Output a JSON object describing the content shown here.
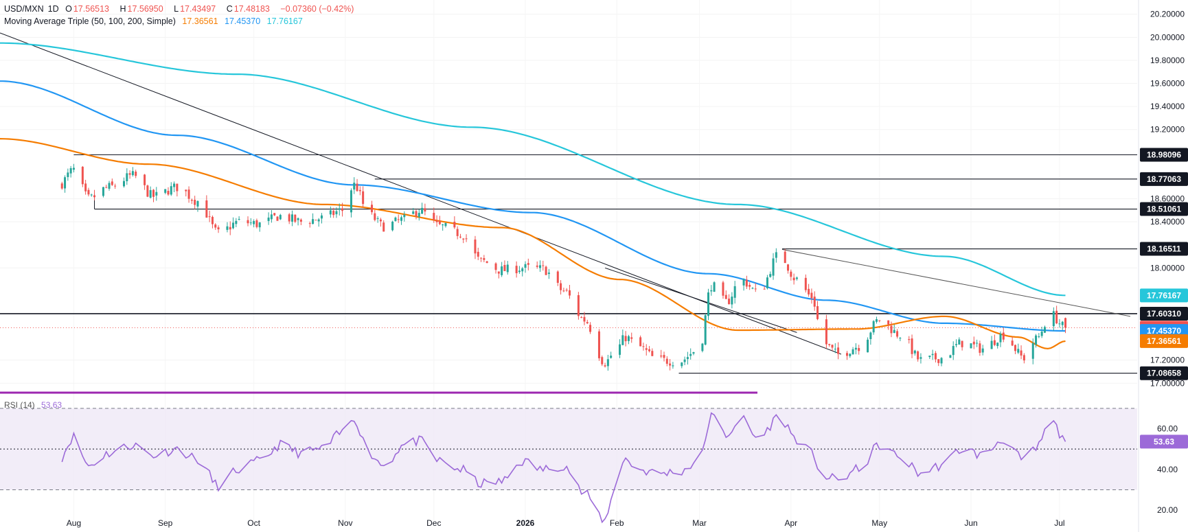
{
  "header": {
    "symbol": "USD/MXN",
    "timeframe": "1D",
    "open_label": "O",
    "open": "17.56513",
    "high_label": "H",
    "high": "17.56950",
    "low_label": "L",
    "low": "17.43497",
    "close_label": "C",
    "close": "17.48183",
    "change": "−0.07360 (−0.42%)",
    "ma_title": "Moving Average Triple (50, 100, 200, Simple)",
    "ma50": "17.36561",
    "ma100": "17.45370",
    "ma200": "17.76167",
    "rsi_title": "RSI (14)",
    "rsi_value": "53.63"
  },
  "colors": {
    "up": "#26a69a",
    "down": "#ef5350",
    "ma50": "#f57c00",
    "ma100": "#2196f3",
    "ma200": "#26c6da",
    "rsi": "#9c6ad8",
    "level_tag": "#131722",
    "price_tag": "#ef5350"
  },
  "chart_data": [
    {
      "type": "candlestick",
      "x_labels": [
        "Aug",
        "Sep",
        "Oct",
        "Nov",
        "Dec",
        "2026",
        "Feb",
        "Mar",
        "Apr",
        "May",
        "Jun",
        "Jul"
      ],
      "y_ticks": [
        "20.20000",
        "20.00000",
        "19.80000",
        "19.60000",
        "19.40000",
        "19.20000",
        "18.60000",
        "18.40000",
        "18.00000",
        "17.20000",
        "17.00000"
      ],
      "ylim": [
        16.96,
        20.24
      ],
      "horizontal_levels": [
        18.98096,
        18.77063,
        18.51061,
        18.16511,
        17.6031,
        17.08658
      ],
      "level_labels": [
        "18.98096",
        "18.77063",
        "18.51061",
        "18.16511",
        "17.60310",
        "17.08658"
      ],
      "value_tags": [
        {
          "label": "17.76167",
          "value": 17.76167,
          "series": "SMA 200"
        },
        {
          "label": "17.48183",
          "value": 17.48183,
          "series": "close"
        },
        {
          "label": "17.45370",
          "value": 17.4537,
          "series": "SMA 100"
        },
        {
          "label": "17.36561",
          "value": 17.36561,
          "series": "SMA 50"
        }
      ],
      "anchors": [
        {
          "x": "Jul 27",
          "close": 18.72
        },
        {
          "x": "Aug 1",
          "close": 18.85
        },
        {
          "x": "Aug 6",
          "close": 18.6
        },
        {
          "x": "Aug 13",
          "close": 18.7
        },
        {
          "x": "Aug 21",
          "close": 18.8
        },
        {
          "x": "Aug 28",
          "close": 18.62
        },
        {
          "x": "Sep 5",
          "close": 18.7
        },
        {
          "x": "Sep 12",
          "close": 18.58
        },
        {
          "x": "Sep 19",
          "close": 18.3
        },
        {
          "x": "Sep 26",
          "close": 18.4
        },
        {
          "x": "Oct 3",
          "close": 18.38
        },
        {
          "x": "Oct 10",
          "close": 18.45
        },
        {
          "x": "Oct 17",
          "close": 18.4
        },
        {
          "x": "Oct 24",
          "close": 18.43
        },
        {
          "x": "Oct 31",
          "close": 18.5
        },
        {
          "x": "Nov 4",
          "close": 18.72
        },
        {
          "x": "Nov 9",
          "close": 18.46
        },
        {
          "x": "Nov 14",
          "close": 18.36
        },
        {
          "x": "Nov 21",
          "close": 18.42
        },
        {
          "x": "Nov 26",
          "close": 18.5
        },
        {
          "x": "Dec 3",
          "close": 18.36
        },
        {
          "x": "Dec 10",
          "close": 18.3
        },
        {
          "x": "Dec 17",
          "close": 18.06
        },
        {
          "x": "Dec 24",
          "close": 17.98
        },
        {
          "x": "Dec 31",
          "close": 18.0
        },
        {
          "x": "Jan 7",
          "close": 17.99
        },
        {
          "x": "Jan 14",
          "close": 17.8
        },
        {
          "x": "Jan 21",
          "close": 17.55
        },
        {
          "x": "Jan 28",
          "close": 17.18
        },
        {
          "x": "Feb 1",
          "close": 17.3
        },
        {
          "x": "Feb 4",
          "close": 17.4
        },
        {
          "x": "Feb 8",
          "close": 17.32
        },
        {
          "x": "Feb 15",
          "close": 17.2
        },
        {
          "x": "Feb 22",
          "close": 17.19
        },
        {
          "x": "Mar 1",
          "close": 17.3
        },
        {
          "x": "Mar 5",
          "close": 17.85
        },
        {
          "x": "Mar 10",
          "close": 17.7
        },
        {
          "x": "Mar 15",
          "close": 17.9
        },
        {
          "x": "Mar 21",
          "close": 17.78
        },
        {
          "x": "Mar 28",
          "close": 18.12
        },
        {
          "x": "Apr 3",
          "close": 17.9
        },
        {
          "x": "Apr 8",
          "close": 17.75
        },
        {
          "x": "Apr 12",
          "close": 17.35
        },
        {
          "x": "Apr 17",
          "close": 17.25
        },
        {
          "x": "Apr 24",
          "close": 17.32
        },
        {
          "x": "May 1",
          "close": 17.55
        },
        {
          "x": "May 8",
          "close": 17.42
        },
        {
          "x": "May 15",
          "close": 17.2
        },
        {
          "x": "May 22",
          "close": 17.22
        },
        {
          "x": "May 29",
          "close": 17.35
        },
        {
          "x": "Jun 5",
          "close": 17.3
        },
        {
          "x": "Jun 12",
          "close": 17.42
        },
        {
          "x": "Jun 19",
          "close": 17.22
        },
        {
          "x": "Jun 23",
          "close": 17.38
        },
        {
          "x": "Jun 28",
          "close": 17.6
        },
        {
          "x": "Jul 3",
          "close": 17.48
        }
      ]
    },
    {
      "type": "line",
      "title": "RSI (14)",
      "y_ticks": [
        "60.00",
        "40.00",
        "20.00"
      ],
      "ylim": [
        15,
        75
      ],
      "levels": [
        70,
        50,
        30
      ],
      "anchors": [
        {
          "x": "Jul 27",
          "value": 45
        },
        {
          "x": "Aug 1",
          "value": 56
        },
        {
          "x": "Aug 6",
          "value": 42
        },
        {
          "x": "Aug 13",
          "value": 48
        },
        {
          "x": "Aug 21",
          "value": 52
        },
        {
          "x": "Aug 28",
          "value": 47
        },
        {
          "x": "Sep 5",
          "value": 50
        },
        {
          "x": "Sep 12",
          "value": 45
        },
        {
          "x": "Sep 19",
          "value": 32
        },
        {
          "x": "Sep 26",
          "value": 40
        },
        {
          "x": "Oct 3",
          "value": 44
        },
        {
          "x": "Oct 10",
          "value": 52
        },
        {
          "x": "Oct 17",
          "value": 48
        },
        {
          "x": "Oct 24",
          "value": 50
        },
        {
          "x": "Oct 31",
          "value": 58
        },
        {
          "x": "Nov 4",
          "value": 65
        },
        {
          "x": "Nov 9",
          "value": 48
        },
        {
          "x": "Nov 14",
          "value": 42
        },
        {
          "x": "Nov 21",
          "value": 52
        },
        {
          "x": "Nov 26",
          "value": 54
        },
        {
          "x": "Dec 3",
          "value": 44
        },
        {
          "x": "Dec 10",
          "value": 40
        },
        {
          "x": "Dec 17",
          "value": 33
        },
        {
          "x": "Dec 24",
          "value": 34
        },
        {
          "x": "Dec 31",
          "value": 44
        },
        {
          "x": "Jan 7",
          "value": 40
        },
        {
          "x": "Jan 14",
          "value": 42
        },
        {
          "x": "Jan 21",
          "value": 28
        },
        {
          "x": "Jan 28",
          "value": 15
        },
        {
          "x": "Feb 1",
          "value": 38
        },
        {
          "x": "Feb 4",
          "value": 45
        },
        {
          "x": "Feb 8",
          "value": 40
        },
        {
          "x": "Feb 15",
          "value": 38
        },
        {
          "x": "Feb 22",
          "value": 39
        },
        {
          "x": "Mar 1",
          "value": 44
        },
        {
          "x": "Mar 5",
          "value": 66
        },
        {
          "x": "Mar 10",
          "value": 57
        },
        {
          "x": "Mar 15",
          "value": 65
        },
        {
          "x": "Mar 21",
          "value": 55
        },
        {
          "x": "Mar 28",
          "value": 66
        },
        {
          "x": "Apr 3",
          "value": 55
        },
        {
          "x": "Apr 8",
          "value": 48
        },
        {
          "x": "Apr 12",
          "value": 36
        },
        {
          "x": "Apr 17",
          "value": 35
        },
        {
          "x": "Apr 24",
          "value": 40
        },
        {
          "x": "May 1",
          "value": 52
        },
        {
          "x": "May 8",
          "value": 46
        },
        {
          "x": "May 15",
          "value": 38
        },
        {
          "x": "May 22",
          "value": 42
        },
        {
          "x": "May 29",
          "value": 50
        },
        {
          "x": "Jun 5",
          "value": 47
        },
        {
          "x": "Jun 12",
          "value": 55
        },
        {
          "x": "Jun 19",
          "value": 44
        },
        {
          "x": "Jun 23",
          "value": 50
        },
        {
          "x": "Jun 28",
          "value": 64
        },
        {
          "x": "Jul 3",
          "value": 53.63
        }
      ]
    }
  ]
}
